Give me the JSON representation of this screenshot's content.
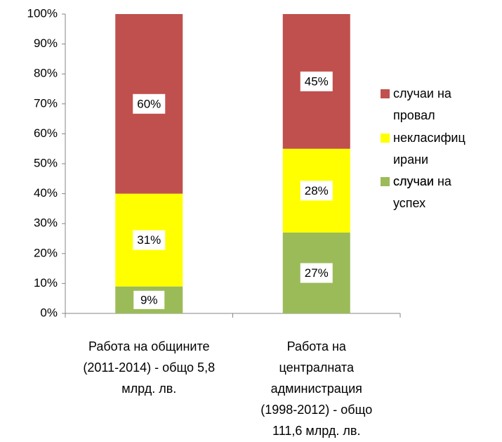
{
  "chart_data": {
    "type": "bar",
    "stacked": true,
    "categories": [
      "Работа на общините (2011-2014) - общо 5,8 млрд. лв.",
      "Работа на централната администрация (1998-2012) - общо 111,6 млрд. лв."
    ],
    "series": [
      {
        "name": "случаи на успех",
        "color": "#9bbb59",
        "values": [
          9,
          27
        ],
        "value_labels": [
          "9%",
          "27%"
        ]
      },
      {
        "name": "некласифицирани случаи",
        "color": "#ffff00",
        "values": [
          31,
          28
        ],
        "value_labels": [
          "31%",
          "28%"
        ]
      },
      {
        "name": "случаи на провал",
        "color": "#c0504d",
        "values": [
          60,
          45
        ],
        "value_labels": [
          "60%",
          "45%"
        ]
      }
    ],
    "ylim": [
      0,
      100
    ],
    "yticks": [
      {
        "value": 0,
        "label": "0%"
      },
      {
        "value": 10,
        "label": "10%"
      },
      {
        "value": 20,
        "label": "20%"
      },
      {
        "value": 30,
        "label": "30%"
      },
      {
        "value": 40,
        "label": "40%"
      },
      {
        "value": 50,
        "label": "50%"
      },
      {
        "value": 60,
        "label": "60%"
      },
      {
        "value": 70,
        "label": "70%"
      },
      {
        "value": 80,
        "label": "80%"
      },
      {
        "value": 90,
        "label": "90%"
      },
      {
        "value": 100,
        "label": "100%"
      }
    ],
    "legend": "right"
  }
}
